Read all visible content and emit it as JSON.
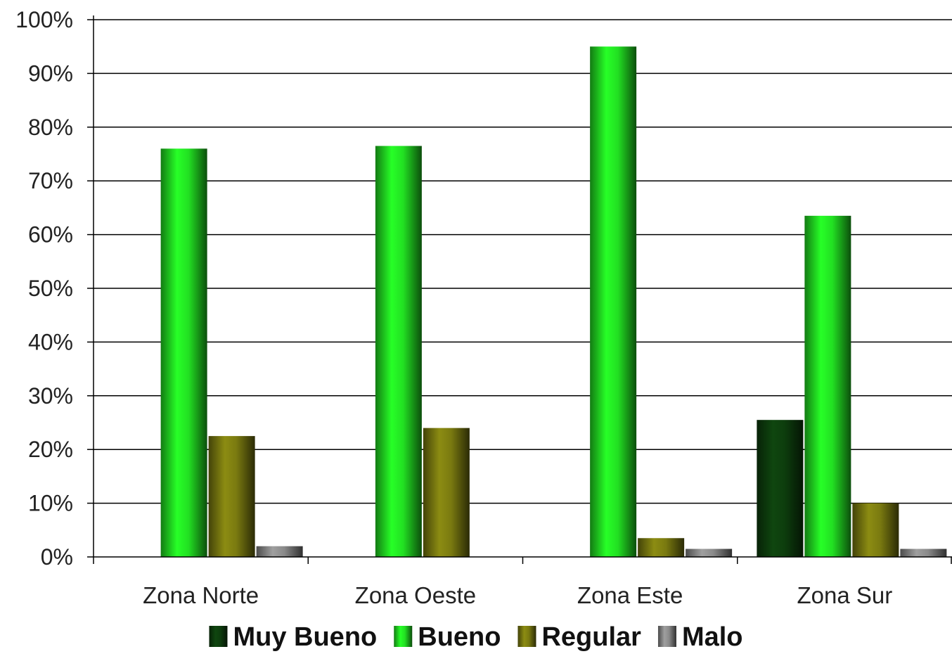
{
  "chart_data": {
    "type": "bar",
    "title": "",
    "xlabel": "",
    "ylabel": "",
    "categories": [
      "Zona Norte",
      "Zona Oeste",
      "Zona Este",
      "Zona Sur"
    ],
    "series": [
      {
        "name": "Muy Bueno",
        "color": "#0d3d0d",
        "values": [
          0,
          0,
          0,
          25.5
        ]
      },
      {
        "name": "Bueno",
        "color": "#22e022",
        "values": [
          76,
          76.5,
          95,
          63.5
        ]
      },
      {
        "name": "Regular",
        "color": "#7a7a10",
        "values": [
          22.5,
          24,
          3.5,
          10
        ]
      },
      {
        "name": "Malo",
        "color": "#8a8a8a",
        "values": [
          2,
          0,
          1.5,
          1.5
        ]
      }
    ],
    "ylim": [
      0,
      100
    ],
    "yticks": [
      "0%",
      "10%",
      "20%",
      "30%",
      "40%",
      "50%",
      "60%",
      "70%",
      "80%",
      "90%",
      "100%"
    ],
    "grid": true,
    "legend_position": "bottom"
  }
}
